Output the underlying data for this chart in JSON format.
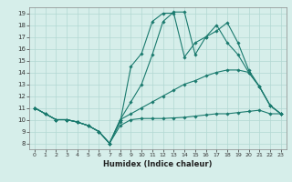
{
  "xlabel": "Humidex (Indice chaleur)",
  "background_color": "#d6eeea",
  "grid_color": "#b2d8d2",
  "line_color": "#1a7a6e",
  "xlim": [
    -0.5,
    23.5
  ],
  "ylim": [
    7.5,
    19.5
  ],
  "xticks": [
    0,
    1,
    2,
    3,
    4,
    5,
    6,
    7,
    8,
    9,
    10,
    11,
    12,
    13,
    14,
    15,
    16,
    17,
    18,
    19,
    20,
    21,
    22,
    23
  ],
  "yticks": [
    8,
    9,
    10,
    11,
    12,
    13,
    14,
    15,
    16,
    17,
    18,
    19
  ],
  "lines": [
    {
      "x": [
        0,
        1,
        2,
        3,
        4,
        5,
        6,
        7,
        8,
        9,
        10,
        11,
        12,
        13,
        14,
        15,
        16,
        17,
        18,
        19,
        20,
        21,
        22,
        23
      ],
      "y": [
        11,
        10.5,
        10.0,
        10.0,
        9.8,
        9.5,
        9.0,
        8.0,
        9.5,
        10.0,
        10.1,
        10.1,
        10.1,
        10.15,
        10.2,
        10.3,
        10.4,
        10.5,
        10.5,
        10.6,
        10.7,
        10.8,
        10.5,
        10.5
      ]
    },
    {
      "x": [
        0,
        1,
        2,
        3,
        4,
        5,
        6,
        7,
        8,
        9,
        10,
        11,
        12,
        13,
        14,
        15,
        16,
        17,
        18,
        19,
        20,
        21,
        22,
        23
      ],
      "y": [
        11,
        10.5,
        10.0,
        10.0,
        9.8,
        9.5,
        9.0,
        8.0,
        10.0,
        10.5,
        11.0,
        11.5,
        12.0,
        12.5,
        13.0,
        13.3,
        13.7,
        14.0,
        14.2,
        14.2,
        14.0,
        12.8,
        11.2,
        10.5
      ]
    },
    {
      "x": [
        0,
        1,
        2,
        3,
        4,
        5,
        6,
        7,
        8,
        9,
        10,
        11,
        12,
        13,
        14,
        15,
        16,
        17,
        18,
        19,
        20,
        21,
        22,
        23
      ],
      "y": [
        11,
        10.5,
        10.0,
        10.0,
        9.8,
        9.5,
        9.0,
        8.0,
        10.0,
        11.5,
        13.0,
        15.5,
        18.3,
        19.1,
        19.1,
        15.5,
        17.0,
        17.5,
        18.2,
        16.5,
        14.2,
        12.8,
        11.2,
        10.5
      ]
    },
    {
      "x": [
        0,
        1,
        2,
        3,
        4,
        5,
        6,
        7,
        8,
        9,
        10,
        11,
        12,
        13,
        14,
        15,
        16,
        17,
        18,
        19,
        20,
        21,
        22,
        23
      ],
      "y": [
        11,
        10.5,
        10.0,
        10.0,
        9.8,
        9.5,
        9.0,
        8.0,
        9.8,
        14.5,
        15.6,
        18.3,
        19.0,
        19.0,
        15.3,
        16.5,
        17.0,
        18.0,
        16.5,
        15.5,
        14.0,
        12.8,
        11.2,
        10.5
      ]
    }
  ]
}
